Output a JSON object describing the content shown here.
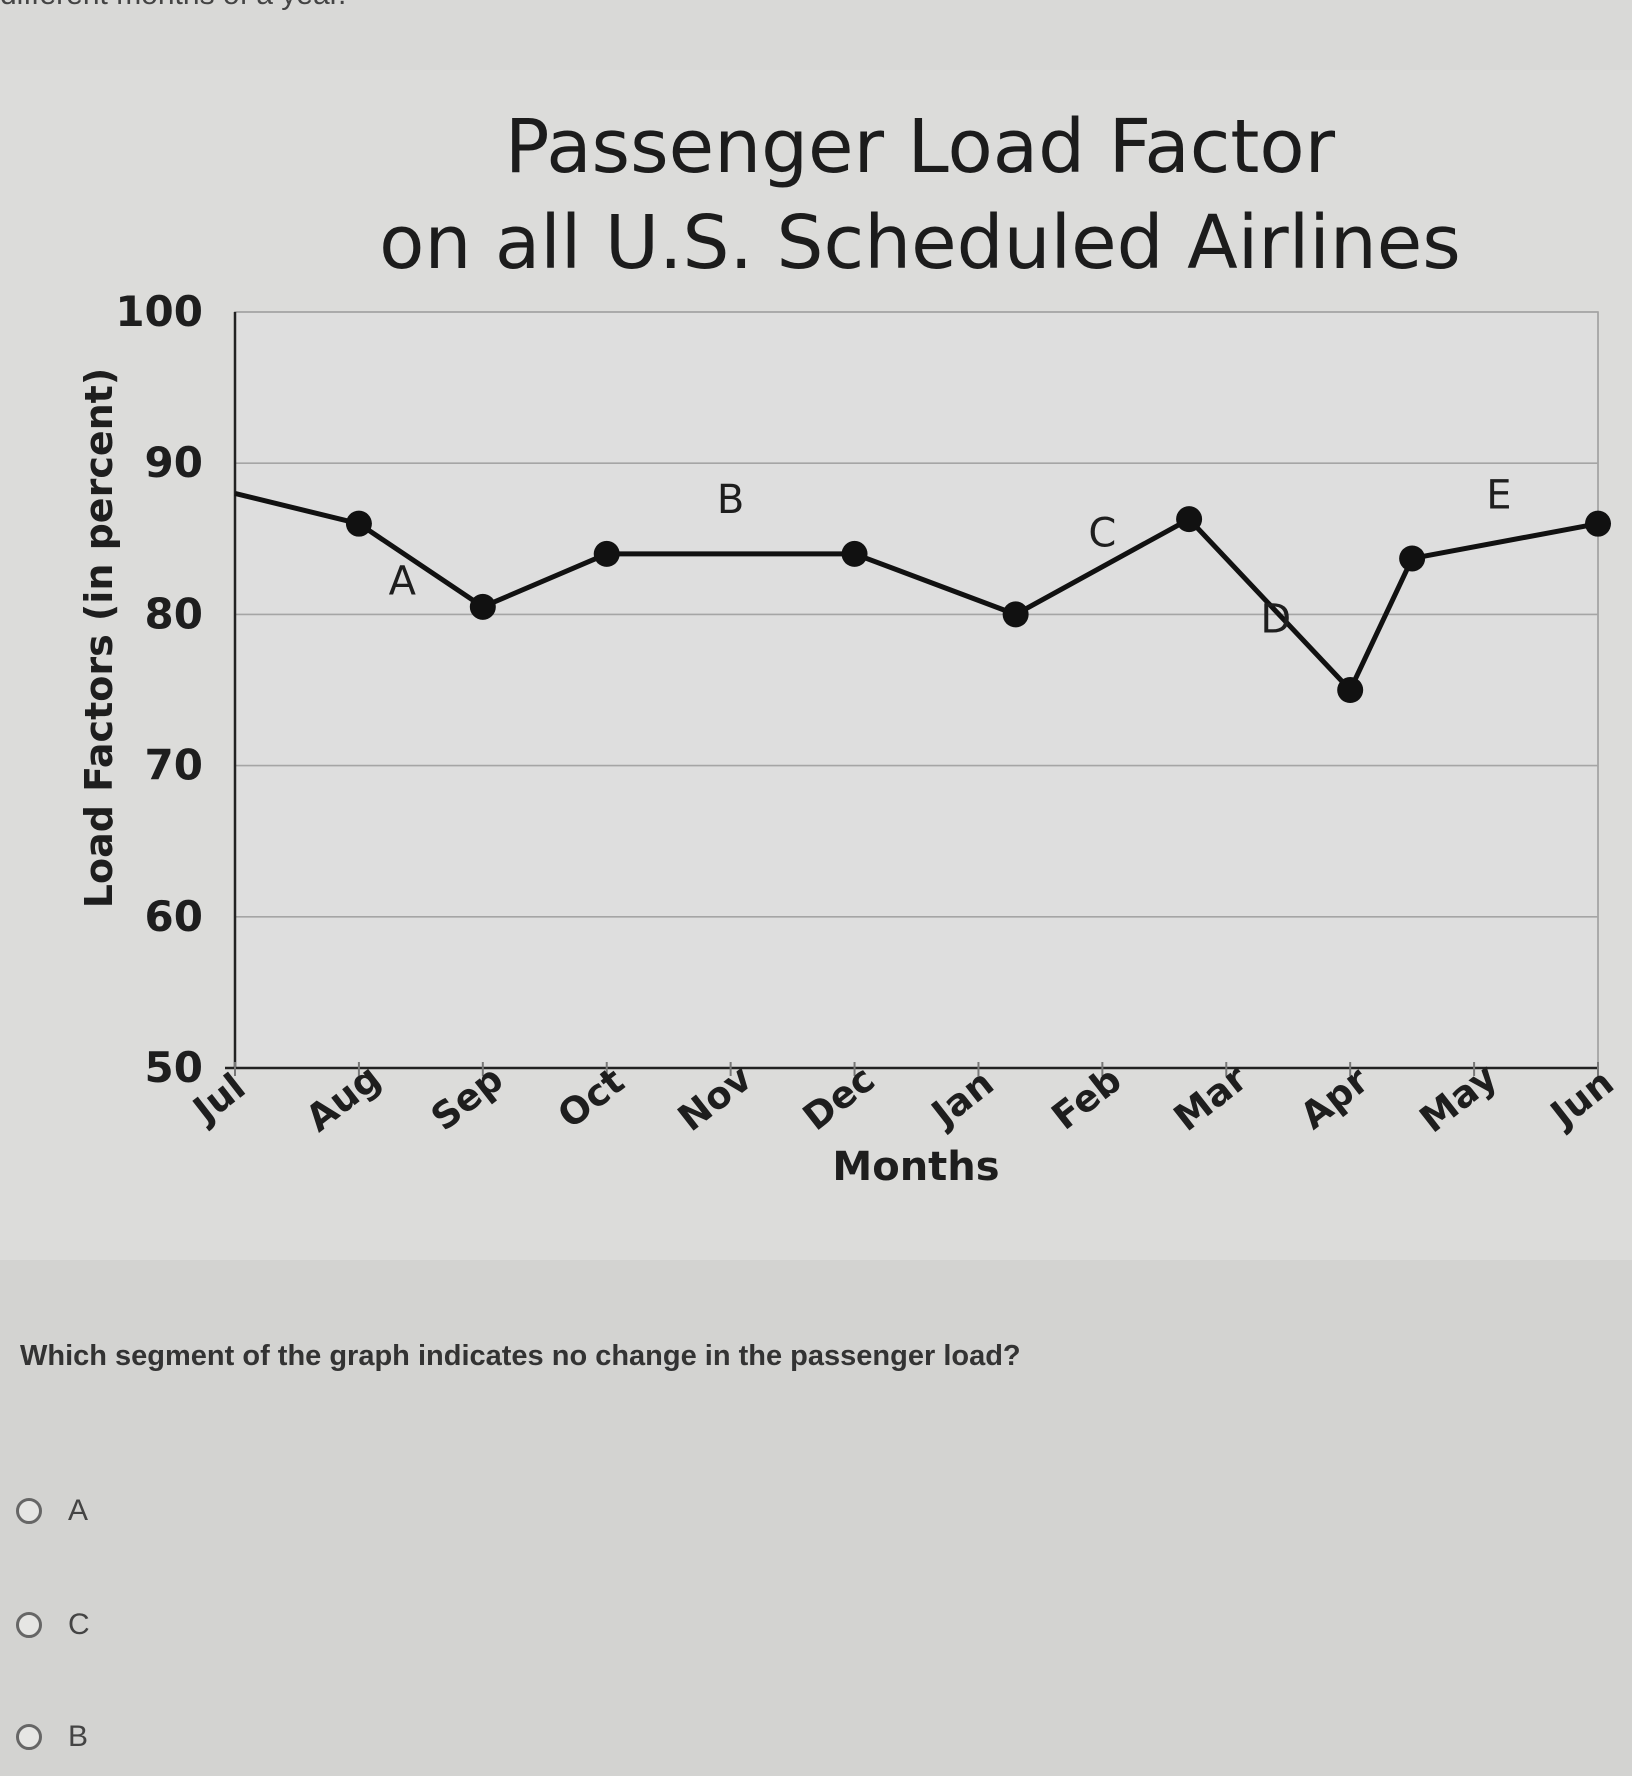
{
  "header": {
    "cut_text": "different months of a year."
  },
  "chart_title": {
    "line1": "Passenger Load Factor",
    "line2": "on all U.S. Scheduled Airlines"
  },
  "chart_data": {
    "type": "line",
    "title": "Passenger Load Factor on all U.S. Scheduled Airlines",
    "xlabel": "Months",
    "ylabel": "Load Factors (in percent)",
    "ylim": [
      50,
      100
    ],
    "yticks": [
      50,
      60,
      70,
      80,
      90,
      100
    ],
    "grid": true,
    "categories": [
      "Jul",
      "Aug",
      "Sep",
      "Oct",
      "Nov",
      "Dec",
      "Jan",
      "Feb",
      "Mar",
      "Apr",
      "May",
      "Jun"
    ],
    "points": [
      {
        "x": 0.0,
        "y": 88,
        "marker": false
      },
      {
        "x": 1.0,
        "y": 86,
        "marker": true
      },
      {
        "x": 2.0,
        "y": 80.5,
        "marker": true
      },
      {
        "x": 3.0,
        "y": 84,
        "marker": true
      },
      {
        "x": 5.0,
        "y": 84,
        "marker": true
      },
      {
        "x": 6.3,
        "y": 80,
        "marker": true
      },
      {
        "x": 7.7,
        "y": 86.3,
        "marker": true
      },
      {
        "x": 9.0,
        "y": 75,
        "marker": true
      },
      {
        "x": 9.5,
        "y": 83.7,
        "marker": true
      },
      {
        "x": 11.0,
        "y": 86,
        "marker": true
      }
    ],
    "segment_labels": [
      {
        "text": "A",
        "x": 1.35,
        "y": 81.3
      },
      {
        "text": "B",
        "x": 4.0,
        "y": 86.7
      },
      {
        "text": "C",
        "x": 7.0,
        "y": 84.5
      },
      {
        "text": "D",
        "x": 8.4,
        "y": 78.8
      },
      {
        "text": "E",
        "x": 10.2,
        "y": 87.0
      }
    ]
  },
  "question": {
    "text": "Which segment of the graph indicates no change in the passenger load?",
    "options": [
      "A",
      "C",
      "B"
    ]
  }
}
